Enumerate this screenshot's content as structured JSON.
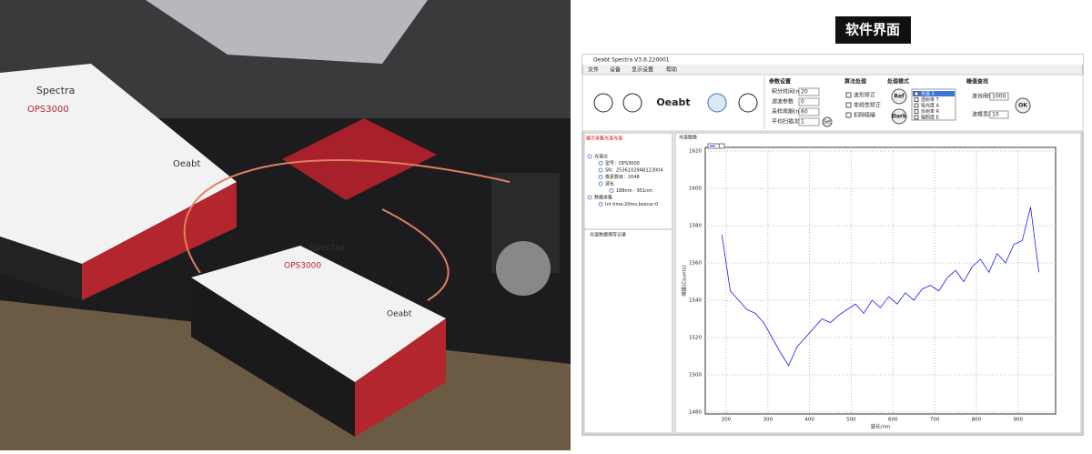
{
  "heading": "软件界面",
  "photo": {
    "labels": [
      "Spectra",
      "OPS3000",
      "Oeabt",
      "OPS3000",
      "Spectra",
      "Oeabt"
    ]
  },
  "window": {
    "title": "Oeabt Spectra V3.6.220001",
    "menu": [
      "文件",
      "设备",
      "显示设置",
      "帮助"
    ],
    "logo": "Oeabt",
    "params": {
      "title": "参数设置",
      "fields": [
        {
          "label": "积分时间(ms)",
          "value": "20"
        },
        {
          "label": "滤波参数",
          "value": "0"
        },
        {
          "label": "采样周期(ms)",
          "value": "60"
        },
        {
          "label": "平均扫描次数",
          "value": "1"
        }
      ],
      "button": "Set"
    },
    "algorithm": {
      "title": "算法处理",
      "options": [
        "波形矫正",
        "非线性矫正",
        "扣除暗噪"
      ]
    },
    "mode": {
      "title": "处理模式",
      "buttons": [
        "Ref",
        "Dark"
      ],
      "options": [
        "光谱 S",
        "透射率 T",
        "吸光度 A",
        "反射率 R",
        "辐照度 E"
      ]
    },
    "peak": {
      "title": "峰值查找",
      "fields": [
        {
          "label": "波谷阈值",
          "value": "1000"
        },
        {
          "label": "波峰宽度",
          "value": "10"
        }
      ],
      "button": "OK"
    },
    "tree": {
      "status": "展示采集光谱光谱",
      "items": [
        "光谱仪",
        "型号：OPS3000",
        "SN：25361X29AB123004",
        "像素数目：2048",
        "波长",
        "188nm - 951nm",
        "数据采集",
        "Int time:20ms,boxcar:0"
      ],
      "footer": "光谱数据保存记录"
    }
  },
  "chart_data": {
    "type": "line",
    "title": "光谱图像",
    "xlabel": "波长/nm",
    "ylabel": "强度(Counts)",
    "x": [
      190,
      210,
      230,
      250,
      270,
      290,
      310,
      330,
      350,
      370,
      390,
      410,
      430,
      450,
      470,
      490,
      510,
      530,
      550,
      570,
      590,
      610,
      630,
      650,
      670,
      690,
      710,
      730,
      750,
      770,
      790,
      810,
      830,
      850,
      870,
      890,
      910,
      930,
      950
    ],
    "series": [
      {
        "name": "1",
        "color": "#1a1aff",
        "values": [
          1575,
          1545,
          1540,
          1535,
          1533,
          1528,
          1520,
          1512,
          1505,
          1515,
          1520,
          1525,
          1530,
          1528,
          1532,
          1535,
          1538,
          1533,
          1540,
          1536,
          1542,
          1538,
          1544,
          1540,
          1546,
          1548,
          1545,
          1552,
          1556,
          1550,
          1558,
          1562,
          1555,
          1565,
          1560,
          1570,
          1572,
          1590,
          1555
        ]
      }
    ],
    "xlim": [
      150,
      990
    ],
    "ylim": [
      1479,
      1622
    ],
    "xticks": [
      200,
      300,
      400,
      500,
      600,
      700,
      800,
      900
    ],
    "yticks": [
      1480,
      1500,
      1520,
      1540,
      1560,
      1580,
      1600,
      1620
    ],
    "grid": true
  }
}
